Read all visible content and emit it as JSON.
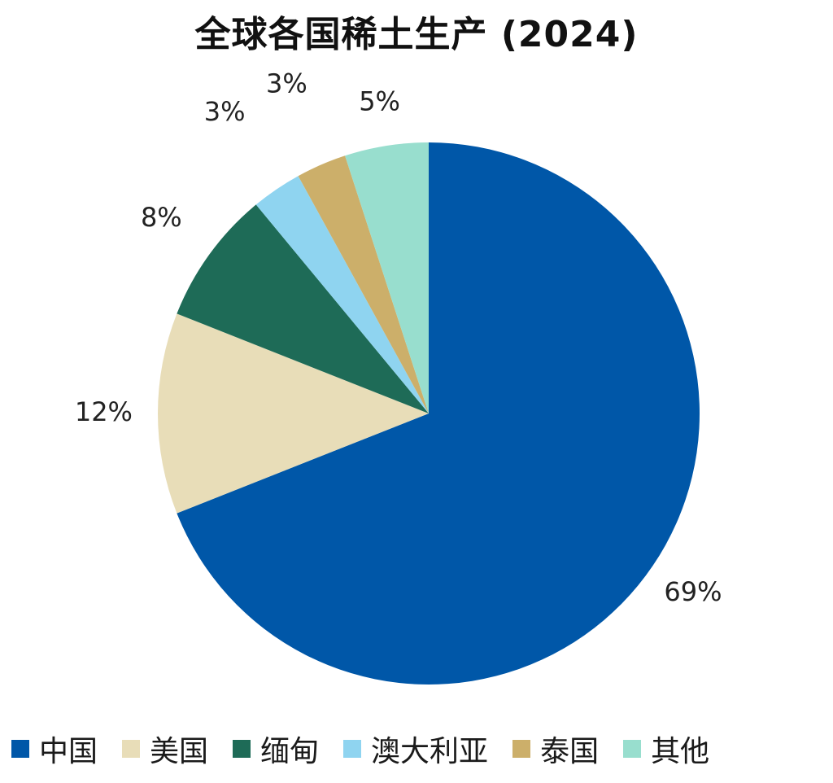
{
  "chart_data": {
    "type": "pie",
    "title": "全球各国稀土生产 (2024)",
    "categories": [
      "中国",
      "美国",
      "缅甸",
      "澳大利亚",
      "泰国",
      "其他"
    ],
    "values": [
      69,
      12,
      8,
      3,
      3,
      5
    ],
    "labels": [
      "69%",
      "12%",
      "8%",
      "3%",
      "3%",
      "5%"
    ],
    "colors": [
      "#0057A8",
      "#E8DDB8",
      "#1E6B57",
      "#8FD4F0",
      "#CCAF6A",
      "#98DECE"
    ],
    "start": "12 o'clock",
    "direction": "clockwise",
    "legend_position": "bottom"
  }
}
